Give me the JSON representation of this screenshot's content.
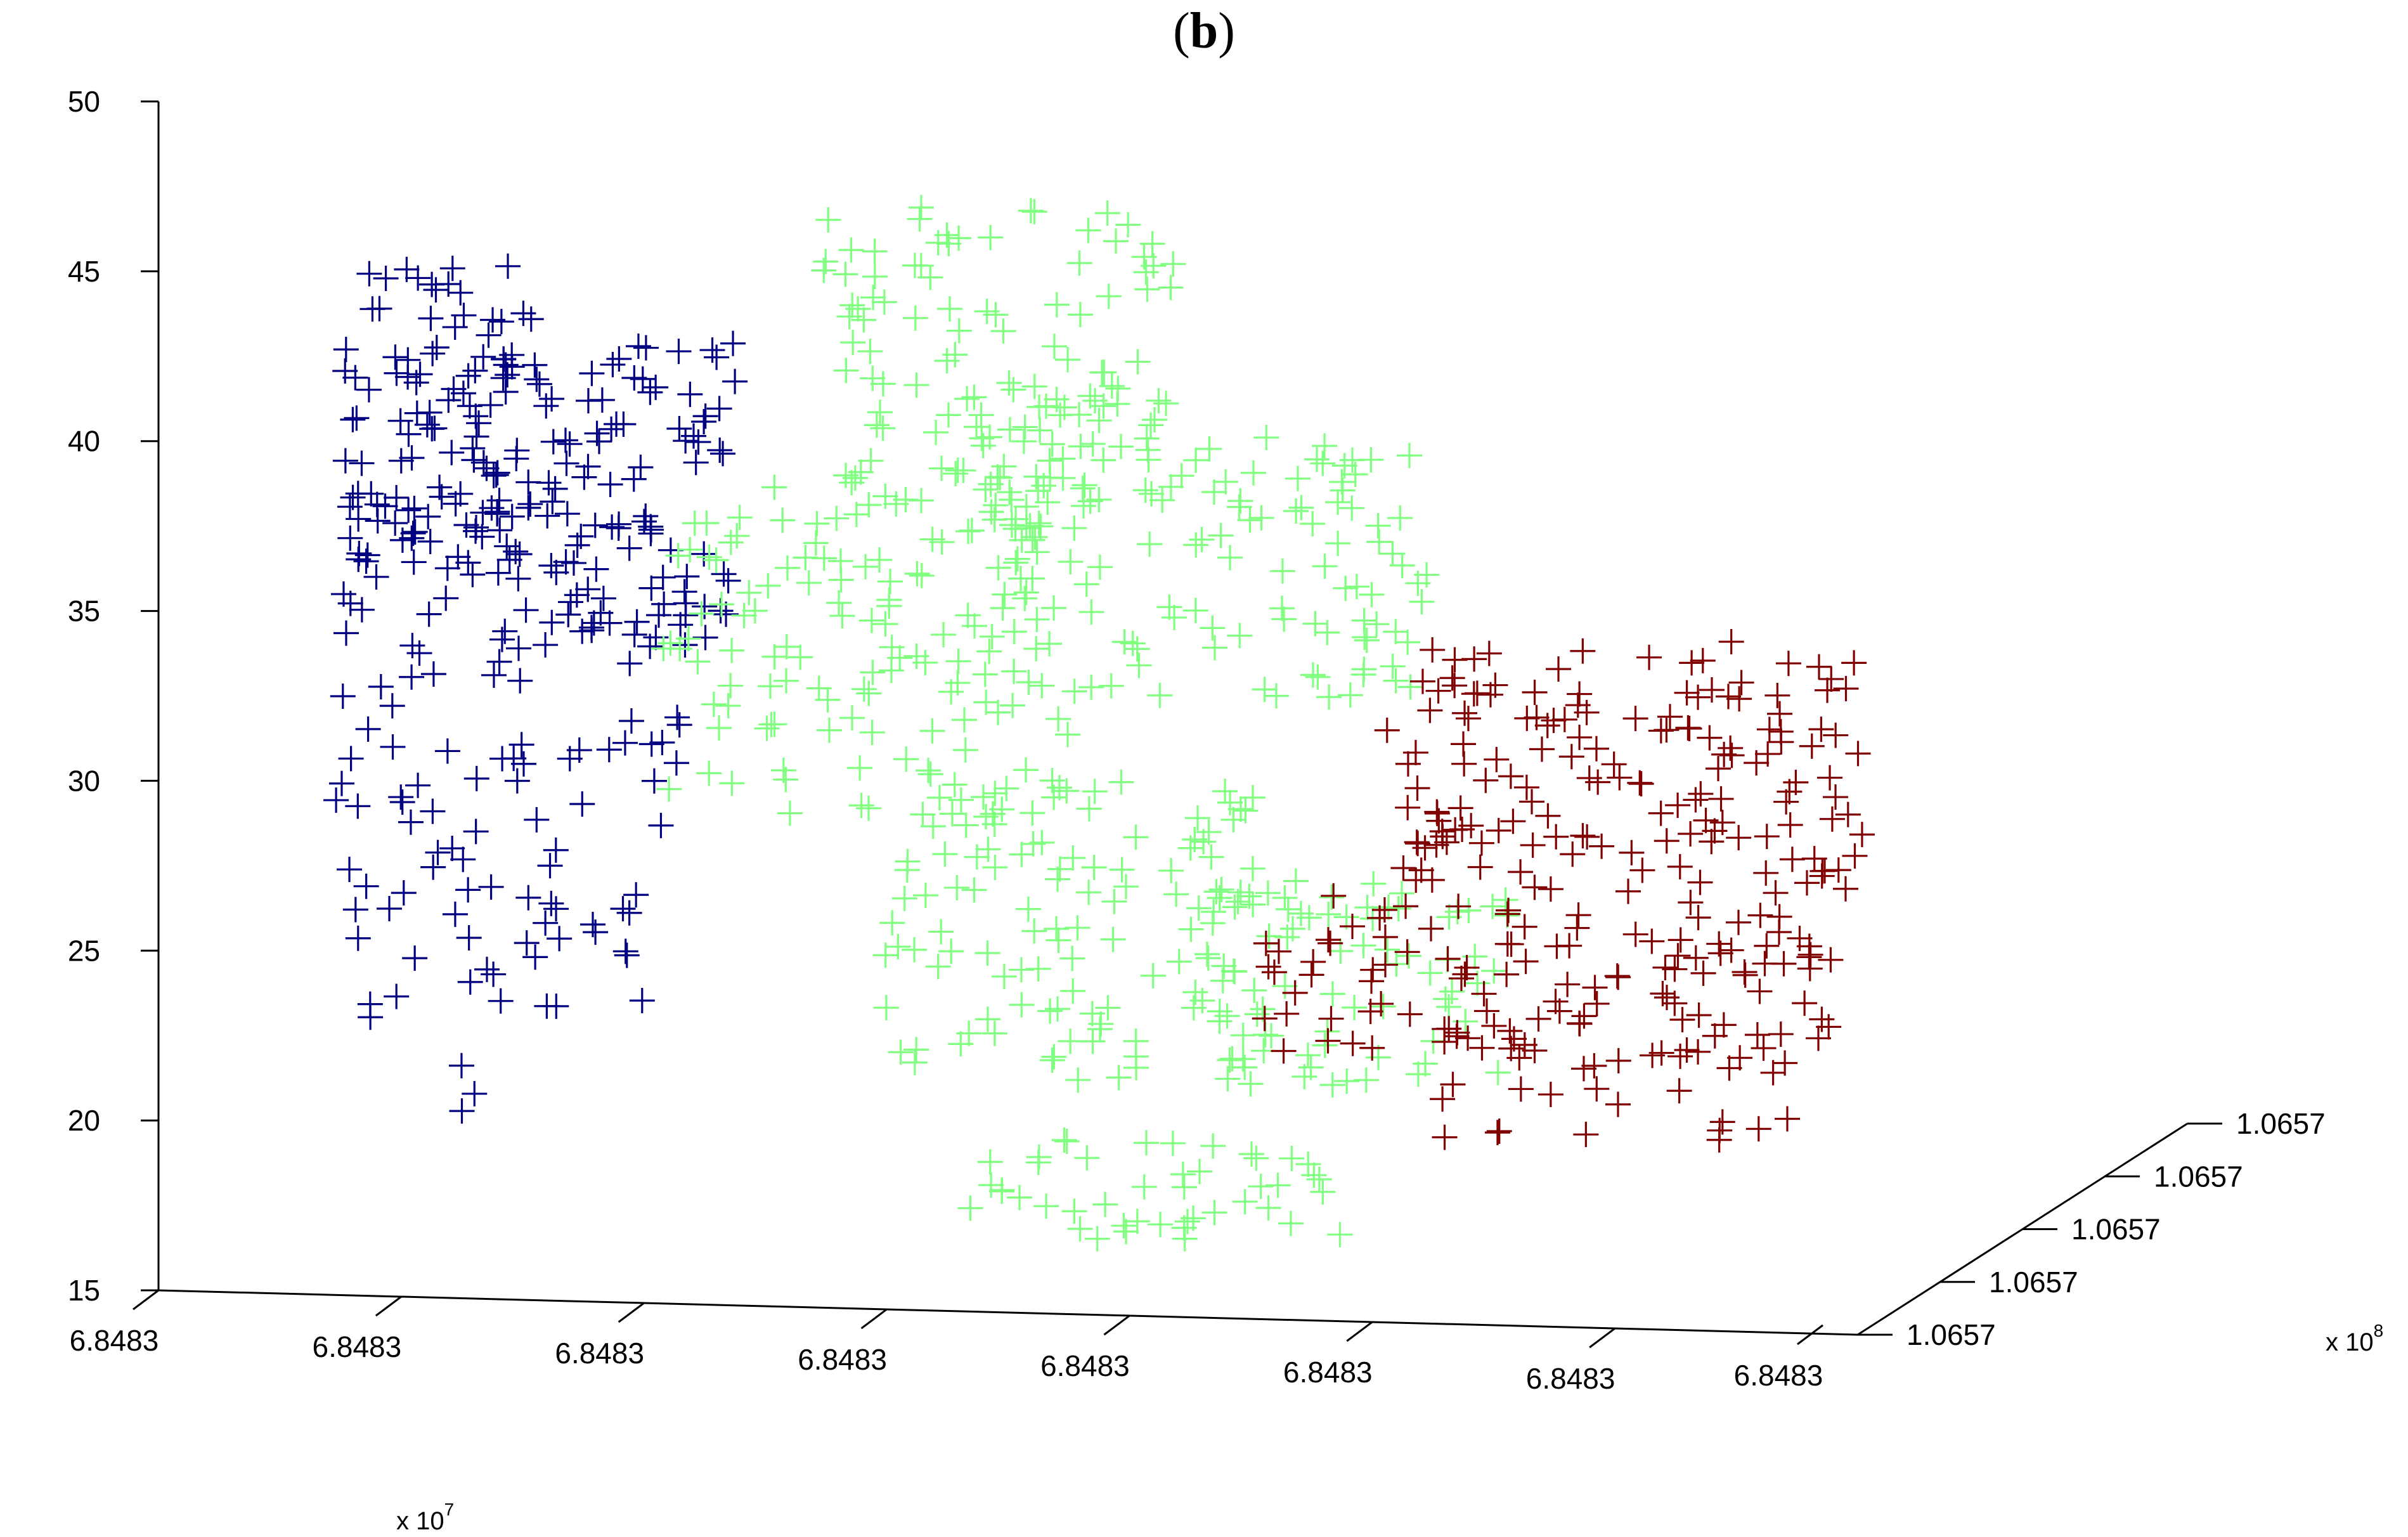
{
  "panel_label": {
    "open": "(",
    "letter": "b",
    "close": ")"
  },
  "chart_data": {
    "type": "scatter",
    "marker": "+",
    "title": "(b)",
    "view": "3d",
    "grid": false,
    "axes": {
      "z": {
        "ticks": [
          "15",
          "20",
          "25",
          "30",
          "35",
          "40",
          "45",
          "50"
        ],
        "range": [
          15,
          50
        ]
      },
      "x": {
        "ticks": [
          "6.8483",
          "6.8483",
          "6.8483",
          "6.8483",
          "6.8483",
          "6.8483",
          "6.8483",
          "6.8483"
        ],
        "multiplier": {
          "base": "x 10",
          "exp": "7"
        }
      },
      "y": {
        "ticks": [
          "1.0657",
          "1.0657",
          "1.0657",
          "1.0657",
          "1.0657"
        ],
        "multiplier": {
          "base": "x 10",
          "exp": "8"
        }
      }
    },
    "series": [
      {
        "color": "#000080",
        "clusters": [
          {
            "u": [
              0.0,
              0.12
            ],
            "z": [
              36,
              45
            ],
            "n": 130
          },
          {
            "u": [
              0.12,
              0.24
            ],
            "z": [
              34,
              43
            ],
            "n": 90
          },
          {
            "u": [
              0.0,
              0.22
            ],
            "z": [
              29,
              36
            ],
            "n": 60
          },
          {
            "u": [
              0.0,
              0.2
            ],
            "z": [
              23,
              29
            ],
            "n": 45
          },
          {
            "u": [
              0.06,
              0.09
            ],
            "z": [
              20,
              22
            ],
            "n": 3
          }
        ]
      },
      {
        "color": "#80ff80",
        "clusters": [
          {
            "u": [
              0.3,
              0.52
            ],
            "z": [
              38,
              47
            ],
            "n": 120
          },
          {
            "u": [
              0.2,
              0.46
            ],
            "z": [
              29,
              39
            ],
            "n": 130
          },
          {
            "u": [
              0.4,
              0.68
            ],
            "z": [
              32,
              40
            ],
            "n": 120
          },
          {
            "u": [
              0.34,
              0.58
            ],
            "z": [
              21,
              30
            ],
            "n": 110
          },
          {
            "u": [
              0.54,
              0.74
            ],
            "z": [
              21,
              27
            ],
            "n": 80
          },
          {
            "u": [
              0.4,
              0.62
            ],
            "z": [
              16.5,
              19.5
            ],
            "n": 45
          }
        ]
      },
      {
        "color": "#800000",
        "clusters": [
          {
            "u": [
              0.66,
              0.96
            ],
            "z": [
              27,
              34
            ],
            "n": 150
          },
          {
            "u": [
              0.58,
              0.94
            ],
            "z": [
              22,
              27
            ],
            "n": 110
          },
          {
            "u": [
              0.68,
              0.92
            ],
            "z": [
              19.5,
              23
            ],
            "n": 40
          }
        ]
      }
    ]
  }
}
